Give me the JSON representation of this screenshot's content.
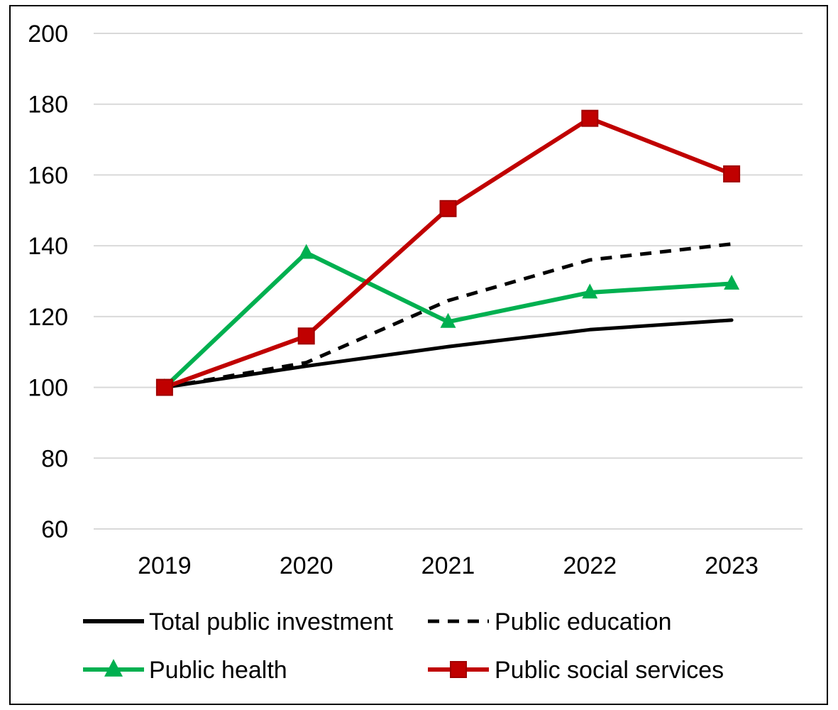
{
  "chart_data": {
    "type": "line",
    "title": "",
    "xlabel": "",
    "ylabel": "",
    "categories": [
      "2019",
      "2020",
      "2021",
      "2022",
      "2023"
    ],
    "ylim": [
      60,
      200
    ],
    "yticks": [
      60,
      80,
      100,
      120,
      140,
      160,
      180,
      200
    ],
    "grid": true,
    "legend_position": "bottom",
    "series": [
      {
        "name": "Total public investment",
        "values": [
          100,
          106,
          111.5,
          116.3,
          119
        ],
        "color": "#000000",
        "style": "solid",
        "marker": "none"
      },
      {
        "name": "Public education",
        "values": [
          100,
          107,
          124.5,
          136,
          140.5
        ],
        "color": "#000000",
        "style": "dashed",
        "marker": "none"
      },
      {
        "name": "Public health",
        "values": [
          100,
          138,
          118.5,
          126.8,
          129.3
        ],
        "color": "#00b050",
        "style": "solid",
        "marker": "triangle"
      },
      {
        "name": "Public social services",
        "values": [
          100,
          114.5,
          150.5,
          176,
          160.3
        ],
        "color": "#c00000",
        "style": "solid",
        "marker": "square"
      }
    ]
  }
}
